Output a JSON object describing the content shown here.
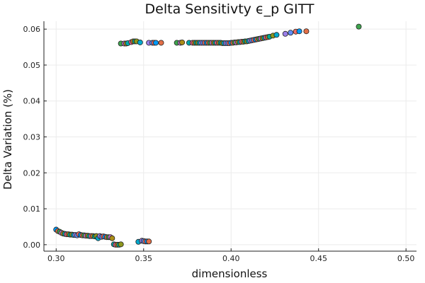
{
  "chart_data": {
    "type": "scatter",
    "title": "Delta Sensitivty ϵ_p GITT",
    "xlabel": "dimensionless",
    "ylabel": "Delta Variation (%)",
    "xlim": [
      0.293,
      0.506
    ],
    "ylim": [
      -0.0018,
      0.0622
    ],
    "xticks": [
      0.3,
      0.35,
      0.4,
      0.45,
      0.5
    ],
    "xtick_labels": [
      "0.30",
      "0.35",
      "0.40",
      "0.45",
      "0.50"
    ],
    "yticks": [
      0.0,
      0.01,
      0.02,
      0.03,
      0.04,
      0.05,
      0.06
    ],
    "ytick_labels": [
      "0.00",
      "0.01",
      "0.02",
      "0.03",
      "0.04",
      "0.05",
      "0.06"
    ],
    "grid": true,
    "legend": "none",
    "palette": [
      "#009AFA",
      "#E36F47",
      "#3EA44E",
      "#C371D2",
      "#AC8D18",
      "#00A9AD",
      "#ED5E93",
      "#C68225",
      "#00A98D",
      "#8E971D",
      "#00A9CD",
      "#9B7FE9",
      "#618DF6",
      "#F16C63"
    ],
    "points": [
      {
        "x": 0.3,
        "y": 0.0042
      },
      {
        "x": 0.301,
        "y": 0.0038
      },
      {
        "x": 0.302,
        "y": 0.0036
      },
      {
        "x": 0.303,
        "y": 0.0033
      },
      {
        "x": 0.304,
        "y": 0.0031
      },
      {
        "x": 0.305,
        "y": 0.003
      },
      {
        "x": 0.306,
        "y": 0.0029
      },
      {
        "x": 0.307,
        "y": 0.0029
      },
      {
        "x": 0.308,
        "y": 0.0028
      },
      {
        "x": 0.309,
        "y": 0.0028
      },
      {
        "x": 0.31,
        "y": 0.0027
      },
      {
        "x": 0.311,
        "y": 0.0027
      },
      {
        "x": 0.312,
        "y": 0.0026
      },
      {
        "x": 0.313,
        "y": 0.0029
      },
      {
        "x": 0.314,
        "y": 0.0027
      },
      {
        "x": 0.315,
        "y": 0.0026
      },
      {
        "x": 0.316,
        "y": 0.0026
      },
      {
        "x": 0.317,
        "y": 0.0025
      },
      {
        "x": 0.318,
        "y": 0.0025
      },
      {
        "x": 0.319,
        "y": 0.0024
      },
      {
        "x": 0.32,
        "y": 0.0024
      },
      {
        "x": 0.321,
        "y": 0.0024
      },
      {
        "x": 0.322,
        "y": 0.0023
      },
      {
        "x": 0.323,
        "y": 0.0024
      },
      {
        "x": 0.324,
        "y": 0.0018
      },
      {
        "x": 0.325,
        "y": 0.0024
      },
      {
        "x": 0.326,
        "y": 0.0022
      },
      {
        "x": 0.327,
        "y": 0.0023
      },
      {
        "x": 0.328,
        "y": 0.0022
      },
      {
        "x": 0.329,
        "y": 0.0021
      },
      {
        "x": 0.33,
        "y": 0.0021
      },
      {
        "x": 0.331,
        "y": 0.0021
      },
      {
        "x": 0.332,
        "y": 0.0018
      },
      {
        "x": 0.333,
        "y": 0.0001
      },
      {
        "x": 0.334,
        "y": 0.0
      },
      {
        "x": 0.335,
        "y": 0.0
      },
      {
        "x": 0.336,
        "y": 0.0
      },
      {
        "x": 0.337,
        "y": 0.0001
      },
      {
        "x": 0.347,
        "y": 0.0008
      },
      {
        "x": 0.349,
        "y": 0.0011
      },
      {
        "x": 0.35,
        "y": 0.001
      },
      {
        "x": 0.351,
        "y": 0.0009
      },
      {
        "x": 0.352,
        "y": 0.0009
      },
      {
        "x": 0.353,
        "y": 0.0009
      },
      {
        "x": 0.337,
        "y": 0.056
      },
      {
        "x": 0.339,
        "y": 0.056
      },
      {
        "x": 0.34,
        "y": 0.056
      },
      {
        "x": 0.341,
        "y": 0.0561
      },
      {
        "x": 0.343,
        "y": 0.0564
      },
      {
        "x": 0.344,
        "y": 0.0566
      },
      {
        "x": 0.345,
        "y": 0.0566
      },
      {
        "x": 0.346,
        "y": 0.0566
      },
      {
        "x": 0.348,
        "y": 0.0563
      },
      {
        "x": 0.353,
        "y": 0.0562
      },
      {
        "x": 0.355,
        "y": 0.0562
      },
      {
        "x": 0.356,
        "y": 0.0562
      },
      {
        "x": 0.357,
        "y": 0.0562
      },
      {
        "x": 0.36,
        "y": 0.0562
      },
      {
        "x": 0.369,
        "y": 0.0562
      },
      {
        "x": 0.371,
        "y": 0.0562
      },
      {
        "x": 0.372,
        "y": 0.0563
      },
      {
        "x": 0.376,
        "y": 0.0562
      },
      {
        "x": 0.378,
        "y": 0.0562
      },
      {
        "x": 0.379,
        "y": 0.0562
      },
      {
        "x": 0.38,
        "y": 0.0562
      },
      {
        "x": 0.381,
        "y": 0.0562
      },
      {
        "x": 0.382,
        "y": 0.0562
      },
      {
        "x": 0.383,
        "y": 0.0562
      },
      {
        "x": 0.384,
        "y": 0.0562
      },
      {
        "x": 0.385,
        "y": 0.0562
      },
      {
        "x": 0.386,
        "y": 0.0562
      },
      {
        "x": 0.387,
        "y": 0.0562
      },
      {
        "x": 0.388,
        "y": 0.0562
      },
      {
        "x": 0.389,
        "y": 0.0562
      },
      {
        "x": 0.39,
        "y": 0.0562
      },
      {
        "x": 0.391,
        "y": 0.0562
      },
      {
        "x": 0.392,
        "y": 0.0562
      },
      {
        "x": 0.393,
        "y": 0.0562
      },
      {
        "x": 0.394,
        "y": 0.0562
      },
      {
        "x": 0.395,
        "y": 0.0561
      },
      {
        "x": 0.396,
        "y": 0.0561
      },
      {
        "x": 0.397,
        "y": 0.0561
      },
      {
        "x": 0.398,
        "y": 0.0561
      },
      {
        "x": 0.399,
        "y": 0.0561
      },
      {
        "x": 0.4,
        "y": 0.0562
      },
      {
        "x": 0.401,
        "y": 0.0562
      },
      {
        "x": 0.402,
        "y": 0.0563
      },
      {
        "x": 0.403,
        "y": 0.0563
      },
      {
        "x": 0.404,
        "y": 0.0564
      },
      {
        "x": 0.405,
        "y": 0.0564
      },
      {
        "x": 0.406,
        "y": 0.0565
      },
      {
        "x": 0.407,
        "y": 0.0565
      },
      {
        "x": 0.408,
        "y": 0.0566
      },
      {
        "x": 0.409,
        "y": 0.0566
      },
      {
        "x": 0.41,
        "y": 0.0567
      },
      {
        "x": 0.411,
        "y": 0.0568
      },
      {
        "x": 0.412,
        "y": 0.0569
      },
      {
        "x": 0.413,
        "y": 0.057
      },
      {
        "x": 0.414,
        "y": 0.0571
      },
      {
        "x": 0.415,
        "y": 0.0572
      },
      {
        "x": 0.416,
        "y": 0.0573
      },
      {
        "x": 0.417,
        "y": 0.0574
      },
      {
        "x": 0.418,
        "y": 0.0575
      },
      {
        "x": 0.419,
        "y": 0.0576
      },
      {
        "x": 0.42,
        "y": 0.0577
      },
      {
        "x": 0.421,
        "y": 0.0578
      },
      {
        "x": 0.422,
        "y": 0.0579
      },
      {
        "x": 0.424,
        "y": 0.0582
      },
      {
        "x": 0.426,
        "y": 0.0584
      },
      {
        "x": 0.431,
        "y": 0.0587
      },
      {
        "x": 0.434,
        "y": 0.059
      },
      {
        "x": 0.437,
        "y": 0.0593
      },
      {
        "x": 0.439,
        "y": 0.0594
      },
      {
        "x": 0.443,
        "y": 0.0594
      },
      {
        "x": 0.473,
        "y": 0.0607
      }
    ]
  }
}
